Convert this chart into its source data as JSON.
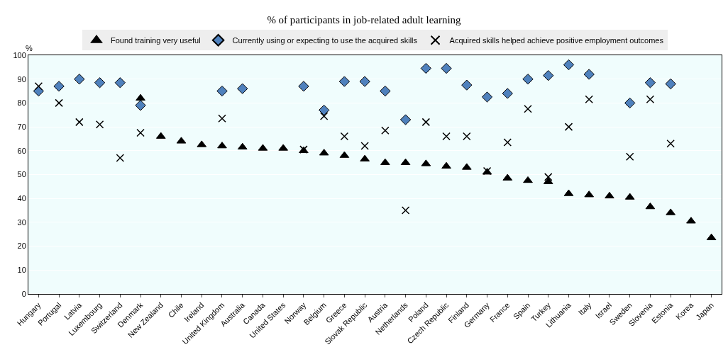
{
  "chart_data": {
    "type": "scatter",
    "title": "% of participants in job-related adult learning",
    "ylabel": "%",
    "categories": [
      "Hungary",
      "Portugal",
      "Latvia",
      "Luxembourg",
      "Switzerland",
      "Denmark",
      "New Zealand",
      "Chile",
      "Ireland",
      "United Kingdom",
      "Australia",
      "Canada",
      "United States",
      "Norway",
      "Belgium",
      "Greece",
      "Slovak Republic",
      "Austria",
      "Netherlands",
      "Poland",
      "Czech Republic",
      "Finland",
      "Germany",
      "France",
      "Spain",
      "Turkey",
      "Lithuania",
      "Italy",
      "Israel",
      "Sweden",
      "Slovenia",
      "Estonia",
      "Korea",
      "Japan"
    ],
    "series": [
      {
        "name": "Found training very useful",
        "color": "#000000",
        "marker": "triangle",
        "values": [
          null,
          null,
          null,
          null,
          null,
          82,
          66,
          64,
          62.5,
          62,
          61.5,
          61,
          61,
          60,
          59,
          58,
          56.5,
          55,
          55,
          54.5,
          53.5,
          53,
          51,
          48.5,
          47.5,
          47,
          42,
          41.5,
          41,
          40.5,
          36.5,
          34,
          30.5,
          23.5
        ]
      },
      {
        "name": "Currently using or expecting to use the acquired skills",
        "color": "#4f81bd",
        "marker": "diamond",
        "values": [
          85,
          87,
          90,
          88.5,
          88.5,
          79,
          null,
          null,
          null,
          85,
          86,
          null,
          null,
          87,
          77,
          89,
          89,
          85,
          73,
          94.5,
          94.5,
          87.5,
          82.5,
          84,
          90,
          91.5,
          96,
          92,
          null,
          80,
          88.5,
          88,
          null,
          null
        ]
      },
      {
        "name": "Acquired skills helped achieve positive employment outcomes",
        "color": "#000000",
        "marker": "cross",
        "values": [
          87,
          80,
          72,
          71,
          57,
          67.5,
          null,
          null,
          null,
          73.5,
          null,
          null,
          null,
          60.5,
          74.5,
          66,
          62,
          68.5,
          35,
          72,
          66,
          66,
          51.5,
          63.5,
          77.5,
          49,
          70,
          81.5,
          null,
          57.5,
          81.5,
          63,
          null,
          null
        ]
      }
    ],
    "ylim": [
      0,
      100
    ],
    "yticks": [
      0,
      10,
      20,
      30,
      40,
      50,
      60,
      70,
      80,
      90,
      100
    ],
    "grid": "y",
    "legend": "top"
  }
}
